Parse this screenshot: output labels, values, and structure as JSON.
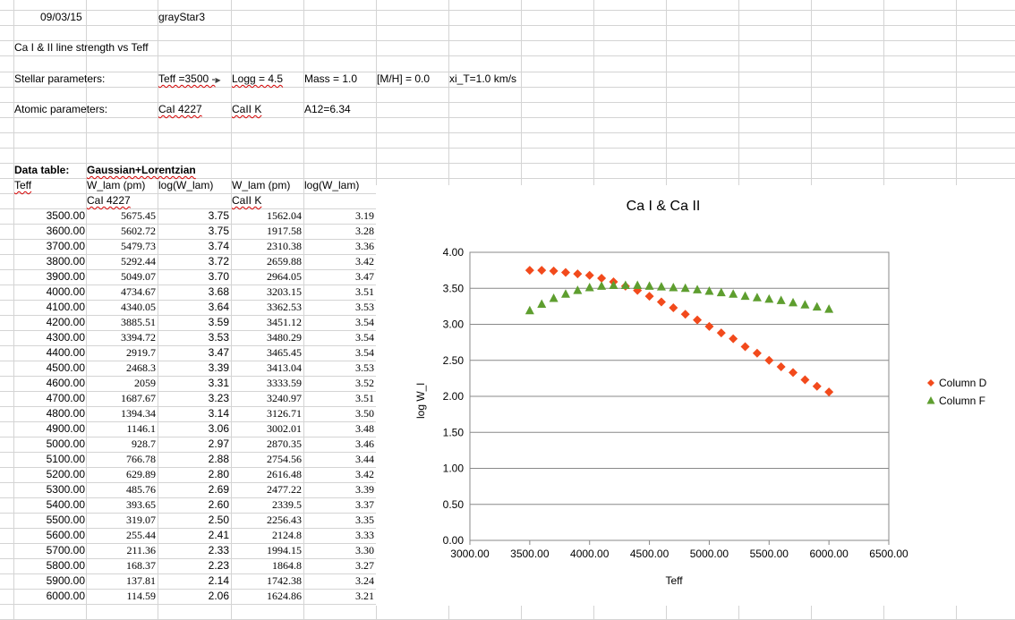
{
  "header": {
    "date": "09/03/15",
    "program": "grayStar3",
    "subtitle": "Ca I & II line strength vs Teff"
  },
  "stellar": {
    "label": "Stellar parameters:",
    "teff": "Teff =3500 -",
    "logg": "Logg = 4.5",
    "mass": "Mass = 1.0",
    "mh": "[M/H] = 0.0",
    "xi": "xi_T=1.0 km/s"
  },
  "atomic": {
    "label": "Atomic parameters:",
    "line1": "CaI 4227",
    "line2": "CaII K",
    "a12": "A12=6.34"
  },
  "table": {
    "label": "Data table:",
    "profile": "Gaussian+Lorentzian",
    "col_teff": "Teff",
    "col_w1": "W_lam (pm)",
    "col_log1": "log(W_lam)",
    "col_w2": "W_lam (pm)",
    "col_log2": "log(W_lam)",
    "sub1": "CaI 4227",
    "sub2": "CaII K",
    "rows": [
      [
        "3500.00",
        "5675.45",
        "3.75",
        "1562.04",
        "3.19"
      ],
      [
        "3600.00",
        "5602.72",
        "3.75",
        "1917.58",
        "3.28"
      ],
      [
        "3700.00",
        "5479.73",
        "3.74",
        "2310.38",
        "3.36"
      ],
      [
        "3800.00",
        "5292.44",
        "3.72",
        "2659.88",
        "3.42"
      ],
      [
        "3900.00",
        "5049.07",
        "3.70",
        "2964.05",
        "3.47"
      ],
      [
        "4000.00",
        "4734.67",
        "3.68",
        "3203.15",
        "3.51"
      ],
      [
        "4100.00",
        "4340.05",
        "3.64",
        "3362.53",
        "3.53"
      ],
      [
        "4200.00",
        "3885.51",
        "3.59",
        "3451.12",
        "3.54"
      ],
      [
        "4300.00",
        "3394.72",
        "3.53",
        "3480.29",
        "3.54"
      ],
      [
        "4400.00",
        "2919.7",
        "3.47",
        "3465.45",
        "3.54"
      ],
      [
        "4500.00",
        "2468.3",
        "3.39",
        "3413.04",
        "3.53"
      ],
      [
        "4600.00",
        "2059",
        "3.31",
        "3333.59",
        "3.52"
      ],
      [
        "4700.00",
        "1687.67",
        "3.23",
        "3240.97",
        "3.51"
      ],
      [
        "4800.00",
        "1394.34",
        "3.14",
        "3126.71",
        "3.50"
      ],
      [
        "4900.00",
        "1146.1",
        "3.06",
        "3002.01",
        "3.48"
      ],
      [
        "5000.00",
        "928.7",
        "2.97",
        "2870.35",
        "3.46"
      ],
      [
        "5100.00",
        "766.78",
        "2.88",
        "2754.56",
        "3.44"
      ],
      [
        "5200.00",
        "629.89",
        "2.80",
        "2616.48",
        "3.42"
      ],
      [
        "5300.00",
        "485.76",
        "2.69",
        "2477.22",
        "3.39"
      ],
      [
        "5400.00",
        "393.65",
        "2.60",
        "2339.5",
        "3.37"
      ],
      [
        "5500.00",
        "319.07",
        "2.50",
        "2256.43",
        "3.35"
      ],
      [
        "5600.00",
        "255.44",
        "2.41",
        "2124.8",
        "3.33"
      ],
      [
        "5700.00",
        "211.36",
        "2.33",
        "1994.15",
        "3.30"
      ],
      [
        "5800.00",
        "168.37",
        "2.23",
        "1864.8",
        "3.27"
      ],
      [
        "5900.00",
        "137.81",
        "2.14",
        "1742.38",
        "3.24"
      ],
      [
        "6000.00",
        "114.59",
        "2.06",
        "1624.86",
        "3.21"
      ]
    ]
  },
  "chart_data": {
    "type": "scatter",
    "title": "Ca I & Ca II",
    "xlabel": "Teff",
    "ylabel": "log W_l",
    "xlim": [
      3000,
      6500
    ],
    "ylim": [
      0,
      4
    ],
    "xticks": [
      "3000.00",
      "3500.00",
      "4000.00",
      "4500.00",
      "5000.00",
      "5500.00",
      "6000.00",
      "6500.00"
    ],
    "yticks": [
      "0.00",
      "0.50",
      "1.00",
      "1.50",
      "2.00",
      "2.50",
      "3.00",
      "3.50",
      "4.00"
    ],
    "grid": "horizontal",
    "legend": "right",
    "x": [
      3500,
      3600,
      3700,
      3800,
      3900,
      4000,
      4100,
      4200,
      4300,
      4400,
      4500,
      4600,
      4700,
      4800,
      4900,
      5000,
      5100,
      5200,
      5300,
      5400,
      5500,
      5600,
      5700,
      5800,
      5900,
      6000
    ],
    "series": [
      {
        "name": "Column D",
        "marker": "diamond",
        "color": "#f24a1c",
        "values": [
          3.75,
          3.75,
          3.74,
          3.72,
          3.7,
          3.68,
          3.64,
          3.59,
          3.53,
          3.47,
          3.39,
          3.31,
          3.23,
          3.14,
          3.06,
          2.97,
          2.88,
          2.8,
          2.69,
          2.6,
          2.5,
          2.41,
          2.33,
          2.23,
          2.14,
          2.06
        ]
      },
      {
        "name": "Column F",
        "marker": "triangle",
        "color": "#5e9e2f",
        "values": [
          3.19,
          3.28,
          3.36,
          3.42,
          3.47,
          3.51,
          3.53,
          3.54,
          3.54,
          3.54,
          3.53,
          3.52,
          3.51,
          3.5,
          3.48,
          3.46,
          3.44,
          3.42,
          3.39,
          3.37,
          3.35,
          3.33,
          3.3,
          3.27,
          3.24,
          3.21
        ]
      }
    ]
  }
}
